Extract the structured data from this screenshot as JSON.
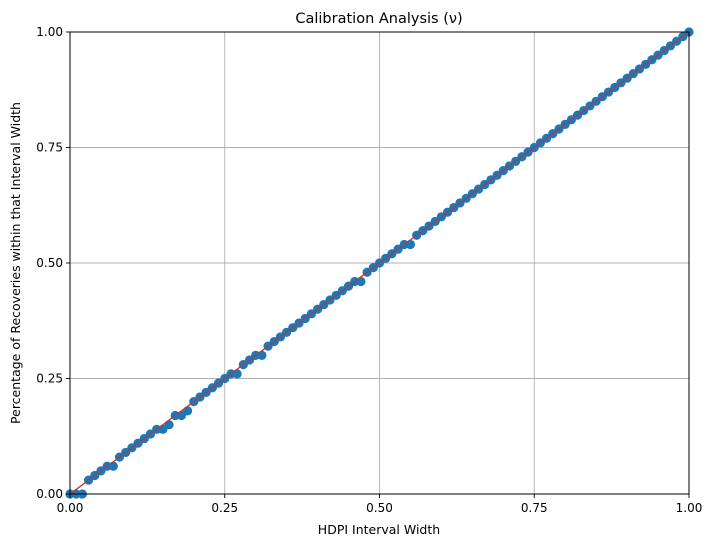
{
  "chart_data": {
    "type": "scatter",
    "title": "Calibration Analysis (ν)",
    "xlabel": "HDPI Interval Width",
    "ylabel": "Percentage of Recoveries within that Interval Width",
    "xlim": [
      0,
      1
    ],
    "ylim": [
      0,
      1
    ],
    "xticks": [
      0,
      0.25,
      0.5,
      0.75,
      1
    ],
    "yticks": [
      0,
      0.25,
      0.5,
      0.75,
      1
    ],
    "xtick_labels": [
      "0.00",
      "0.25",
      "0.50",
      "0.75",
      "1.00"
    ],
    "ytick_labels": [
      "0.00",
      "0.25",
      "0.50",
      "0.75",
      "1.00"
    ],
    "grid": true,
    "reference_line": {
      "x": [
        0,
        1
      ],
      "y": [
        0,
        1
      ],
      "color": "#d62728"
    },
    "series_color": "#1f77b4",
    "points": {
      "x": [
        0.0,
        0.01,
        0.02,
        0.03,
        0.04,
        0.05,
        0.06,
        0.07,
        0.08,
        0.09,
        0.1,
        0.11,
        0.12,
        0.13,
        0.14,
        0.15,
        0.16,
        0.17,
        0.18,
        0.19,
        0.2,
        0.21,
        0.22,
        0.23,
        0.24,
        0.25,
        0.26,
        0.27,
        0.28,
        0.29,
        0.3,
        0.31,
        0.32,
        0.33,
        0.34,
        0.35,
        0.36,
        0.37,
        0.38,
        0.39,
        0.4,
        0.41,
        0.42,
        0.43,
        0.44,
        0.45,
        0.46,
        0.47,
        0.48,
        0.49,
        0.5,
        0.51,
        0.52,
        0.53,
        0.54,
        0.55,
        0.56,
        0.57,
        0.58,
        0.59,
        0.6,
        0.61,
        0.62,
        0.63,
        0.64,
        0.65,
        0.66,
        0.67,
        0.68,
        0.69,
        0.7,
        0.71,
        0.72,
        0.73,
        0.74,
        0.75,
        0.76,
        0.77,
        0.78,
        0.79,
        0.8,
        0.81,
        0.82,
        0.83,
        0.84,
        0.85,
        0.86,
        0.87,
        0.88,
        0.89,
        0.9,
        0.91,
        0.92,
        0.93,
        0.94,
        0.95,
        0.96,
        0.97,
        0.98,
        0.99,
        1.0
      ],
      "y": [
        0.0,
        0.0,
        0.0,
        0.03,
        0.04,
        0.05,
        0.06,
        0.06,
        0.08,
        0.09,
        0.1,
        0.11,
        0.12,
        0.13,
        0.14,
        0.14,
        0.15,
        0.17,
        0.17,
        0.18,
        0.2,
        0.21,
        0.22,
        0.23,
        0.24,
        0.25,
        0.26,
        0.26,
        0.28,
        0.29,
        0.3,
        0.3,
        0.32,
        0.33,
        0.34,
        0.35,
        0.36,
        0.37,
        0.38,
        0.39,
        0.4,
        0.41,
        0.42,
        0.43,
        0.44,
        0.45,
        0.46,
        0.46,
        0.48,
        0.49,
        0.5,
        0.51,
        0.52,
        0.53,
        0.54,
        0.54,
        0.56,
        0.57,
        0.58,
        0.59,
        0.6,
        0.61,
        0.62,
        0.63,
        0.64,
        0.65,
        0.66,
        0.67,
        0.68,
        0.69,
        0.7,
        0.71,
        0.72,
        0.73,
        0.74,
        0.75,
        0.76,
        0.77,
        0.78,
        0.79,
        0.8,
        0.81,
        0.82,
        0.83,
        0.84,
        0.85,
        0.86,
        0.87,
        0.88,
        0.89,
        0.9,
        0.91,
        0.92,
        0.93,
        0.94,
        0.95,
        0.96,
        0.97,
        0.98,
        0.99,
        1.0
      ]
    }
  }
}
